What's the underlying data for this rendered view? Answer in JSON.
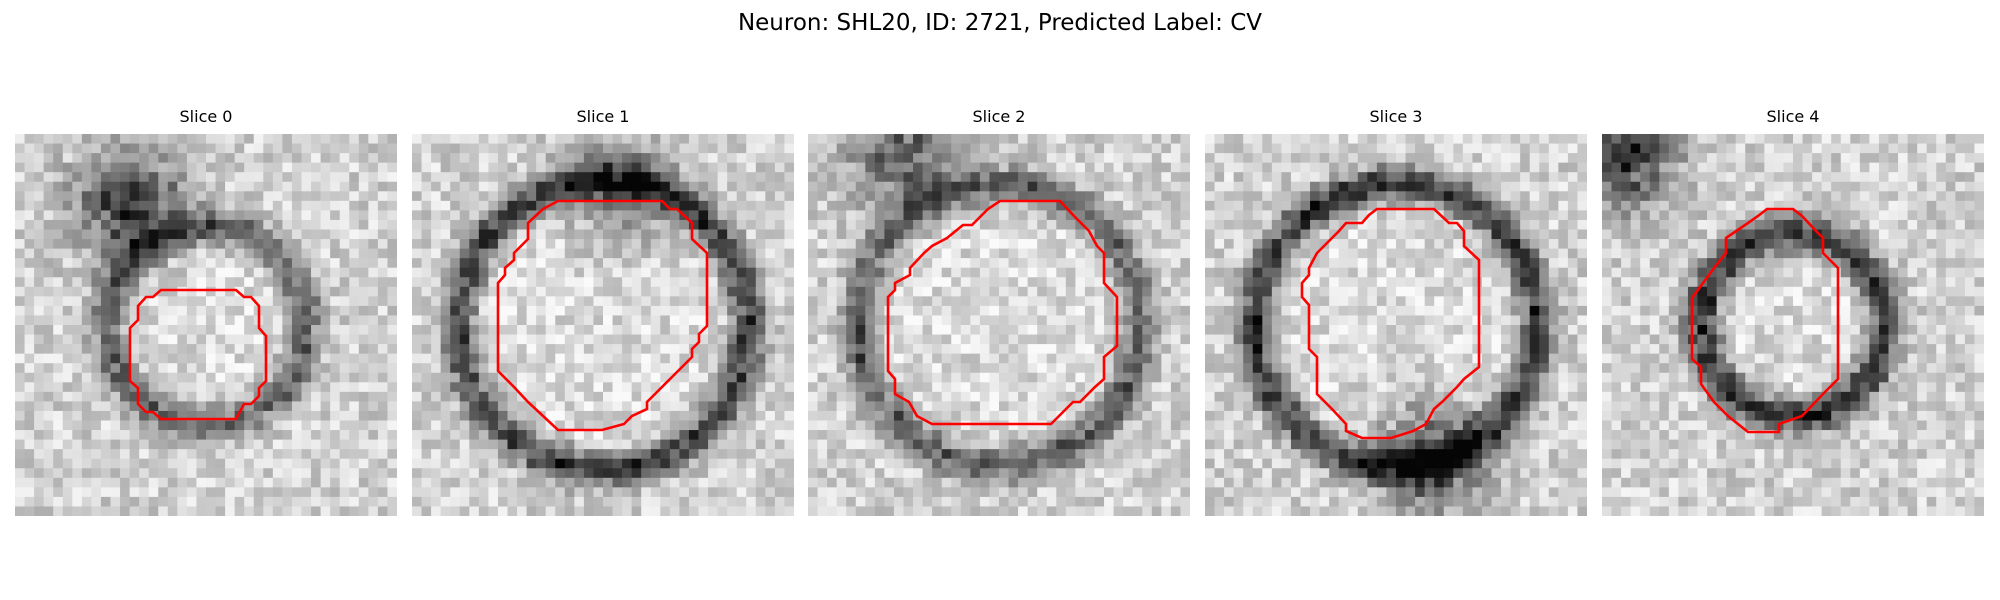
{
  "figure": {
    "title": "Neuron: SHL20, ID: 2721, Predicted Label: CV"
  },
  "panels": [
    {
      "title": "Slice 0",
      "contour_color": "#ff0000",
      "seed": 11,
      "ring": {
        "r": 0.26,
        "dark": 0.42
      },
      "blob": [
        0.3,
        0.18,
        0.55
      ]
    },
    {
      "title": "Slice 1",
      "contour_color": "#ff0000",
      "seed": 23,
      "ring": {
        "r": 0.38,
        "dark": 0.55
      },
      "blob": [
        0.55,
        0.15,
        0.35
      ]
    },
    {
      "title": "Slice 2",
      "contour_color": "#ff0000",
      "seed": 37,
      "ring": {
        "r": 0.37,
        "dark": 0.45
      },
      "blob": [
        0.25,
        0.05,
        0.45
      ]
    },
    {
      "title": "Slice 3",
      "contour_color": "#ff0000",
      "seed": 41,
      "ring": {
        "r": 0.37,
        "dark": 0.58
      },
      "blob": [
        0.6,
        0.85,
        0.5
      ]
    },
    {
      "title": "Slice 4",
      "contour_color": "#ff0000",
      "seed": 53,
      "ring": {
        "r": 0.24,
        "dark": 0.62
      },
      "blob": [
        0.05,
        0.05,
        0.6
      ]
    }
  ]
}
